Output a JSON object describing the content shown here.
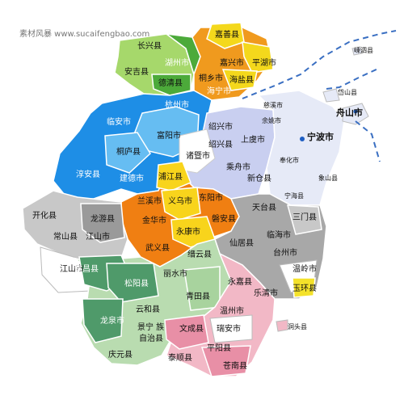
{
  "watermark": "素材风暴 www.sucaifengbao.com",
  "colors": {
    "huzhou_light": "#a6d86b",
    "huzhou_dark": "#4caa3a",
    "jiaxing_orange": "#f09a1e",
    "jiaxing_yellow": "#f4d81c",
    "hangzhou_blue": "#1e8ee6",
    "hangzhou_light": "#66bdf2",
    "shaoxing_lavender": "#c9cff0",
    "ningbo_pale": "#e6eaf7",
    "jinhua_orange": "#f07f12",
    "jinhua_yellow": "#f8d41c",
    "quzhou_gray": "#c8c8c8",
    "quzhou_dark": "#9a9a9a",
    "taizhou_gray": "#a8a8a8",
    "lishui_green": "#4f9a6a",
    "lishui_light": "#b9dcb0",
    "wenzhou_pink": "#f2b8c6",
    "wenzhou_rose": "#e88fa6",
    "coast_line": "#3a6fc2"
  },
  "regions": {
    "huzhou": [
      "长兴县",
      "安吉县",
      "湖州市",
      "德清县"
    ],
    "jiaxing": [
      "嘉善县",
      "嘉兴市",
      "平湖市",
      "桐乡市",
      "海盐县",
      "海宁市"
    ],
    "hangzhou": [
      "杭州市",
      "临安市",
      "富阳市",
      "桐庐县",
      "建德市",
      "淳安县"
    ],
    "shaoxing": [
      "绍兴市",
      "绍兴县",
      "诸暨市",
      "上虞市",
      "乘舟市",
      "新仓县"
    ],
    "ningbo": [
      "慈溪市",
      "余姚市",
      "宁波市",
      "奉化市",
      "象山县",
      "宁海县"
    ],
    "zhoushan": [
      "嵊泗县",
      "岱山县",
      "舟山市"
    ],
    "jinhua": [
      "浦江县",
      "兰溪市",
      "义乌市",
      "东阳市",
      "金华市",
      "磐安县",
      "永康市",
      "武义县"
    ],
    "quzhou": [
      "开化县",
      "常山县",
      "龙游县",
      "江山市",
      "江山市"
    ],
    "taizhou": [
      "天台县",
      "三门县",
      "仙居县",
      "临海市",
      "台州市",
      "温岭市",
      "玉环县"
    ],
    "lishui": [
      "遂昌县",
      "缙云县",
      "松阳县",
      "丽水市",
      "青田县",
      "云和县",
      "龙泉市",
      "景宁 族",
      "自治县",
      "庆元县"
    ],
    "wenzhou": [
      "永嘉县",
      "乐清市",
      "温州市",
      "瑞安市",
      "文成县",
      "平阳县",
      "泰顺县",
      "苍南县",
      "洞头县"
    ]
  }
}
